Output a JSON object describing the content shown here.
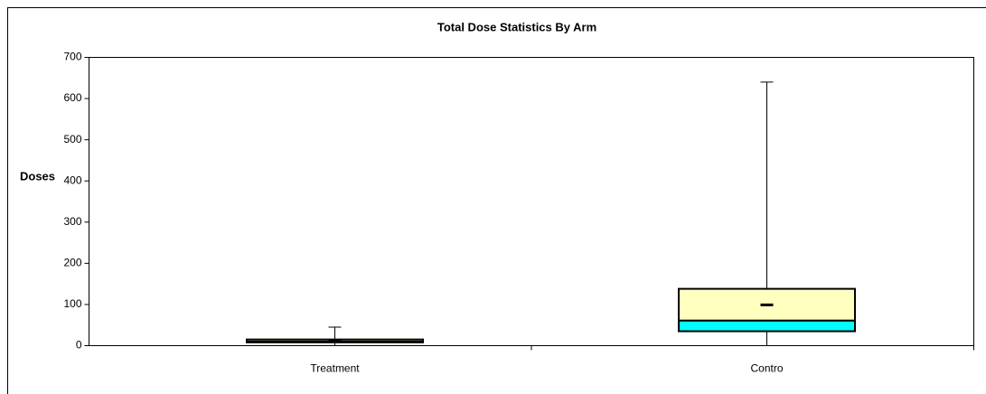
{
  "chart_data": {
    "type": "box",
    "title": "Total Dose Statistics By Arm",
    "y_label": "Doses",
    "categories": [
      "Treatment",
      "Contro"
    ],
    "boxes": [
      {
        "min": 0,
        "q1": 8,
        "median": 10,
        "q3": 15,
        "max": 45,
        "mean": 12
      },
      {
        "min": 0,
        "q1": 35,
        "median": 61,
        "q3": 138,
        "max": 640,
        "mean": 99
      }
    ],
    "lower_color": "#00ffff",
    "upper_color": "#ffffc0",
    "ylim": [
      0,
      700
    ],
    "yticks": [
      0,
      100,
      200,
      300,
      400,
      500,
      600,
      700
    ]
  }
}
